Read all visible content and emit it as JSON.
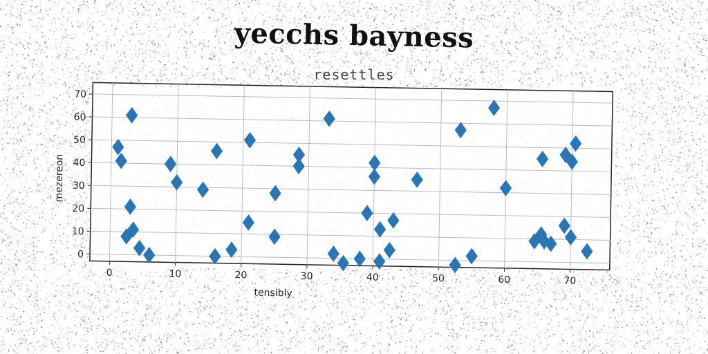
{
  "chart_data": {
    "type": "scatter",
    "title": "yecchs bayness",
    "subtitle": "resettles",
    "xlabel": "tensibly",
    "ylabel": "mezereon",
    "xlim": [
      -3,
      76
    ],
    "ylim": [
      -3,
      75
    ],
    "xticks": [
      0,
      10,
      20,
      30,
      40,
      50,
      60,
      70
    ],
    "yticks": [
      0,
      10,
      20,
      30,
      40,
      50,
      60,
      70
    ],
    "grid": true,
    "marker": "diamond",
    "color": "#2a75b3",
    "points": [
      {
        "x": 1,
        "y": 47
      },
      {
        "x": 1.5,
        "y": 41
      },
      {
        "x": 3,
        "y": 61
      },
      {
        "x": 3,
        "y": 21
      },
      {
        "x": 2.5,
        "y": 8
      },
      {
        "x": 3.5,
        "y": 11
      },
      {
        "x": 4.5,
        "y": 3
      },
      {
        "x": 6,
        "y": 0
      },
      {
        "x": 9,
        "y": 40
      },
      {
        "x": 10,
        "y": 32
      },
      {
        "x": 14,
        "y": 29
      },
      {
        "x": 16,
        "y": 46
      },
      {
        "x": 16,
        "y": 0
      },
      {
        "x": 18.5,
        "y": 3
      },
      {
        "x": 21,
        "y": 51
      },
      {
        "x": 21,
        "y": 15
      },
      {
        "x": 25,
        "y": 28
      },
      {
        "x": 25,
        "y": 9
      },
      {
        "x": 28.5,
        "y": 45
      },
      {
        "x": 28.5,
        "y": 40
      },
      {
        "x": 33,
        "y": 61
      },
      {
        "x": 34,
        "y": 2
      },
      {
        "x": 35.5,
        "y": -2
      },
      {
        "x": 38,
        "y": 0
      },
      {
        "x": 39,
        "y": 20
      },
      {
        "x": 40,
        "y": 42
      },
      {
        "x": 40,
        "y": 36
      },
      {
        "x": 41,
        "y": 13
      },
      {
        "x": 41,
        "y": -1
      },
      {
        "x": 42.5,
        "y": 4
      },
      {
        "x": 43,
        "y": 17
      },
      {
        "x": 46.5,
        "y": 35
      },
      {
        "x": 52.5,
        "y": -2
      },
      {
        "x": 53,
        "y": 57
      },
      {
        "x": 55,
        "y": 2
      },
      {
        "x": 58,
        "y": 67
      },
      {
        "x": 60,
        "y": 32
      },
      {
        "x": 64.5,
        "y": 9
      },
      {
        "x": 65.5,
        "y": 12
      },
      {
        "x": 65.5,
        "y": 45
      },
      {
        "x": 66,
        "y": 9
      },
      {
        "x": 67,
        "y": 8
      },
      {
        "x": 69,
        "y": 16
      },
      {
        "x": 69,
        "y": 47
      },
      {
        "x": 70,
        "y": 11
      },
      {
        "x": 70,
        "y": 44
      },
      {
        "x": 70.5,
        "y": 52
      },
      {
        "x": 72.5,
        "y": 5
      }
    ]
  }
}
